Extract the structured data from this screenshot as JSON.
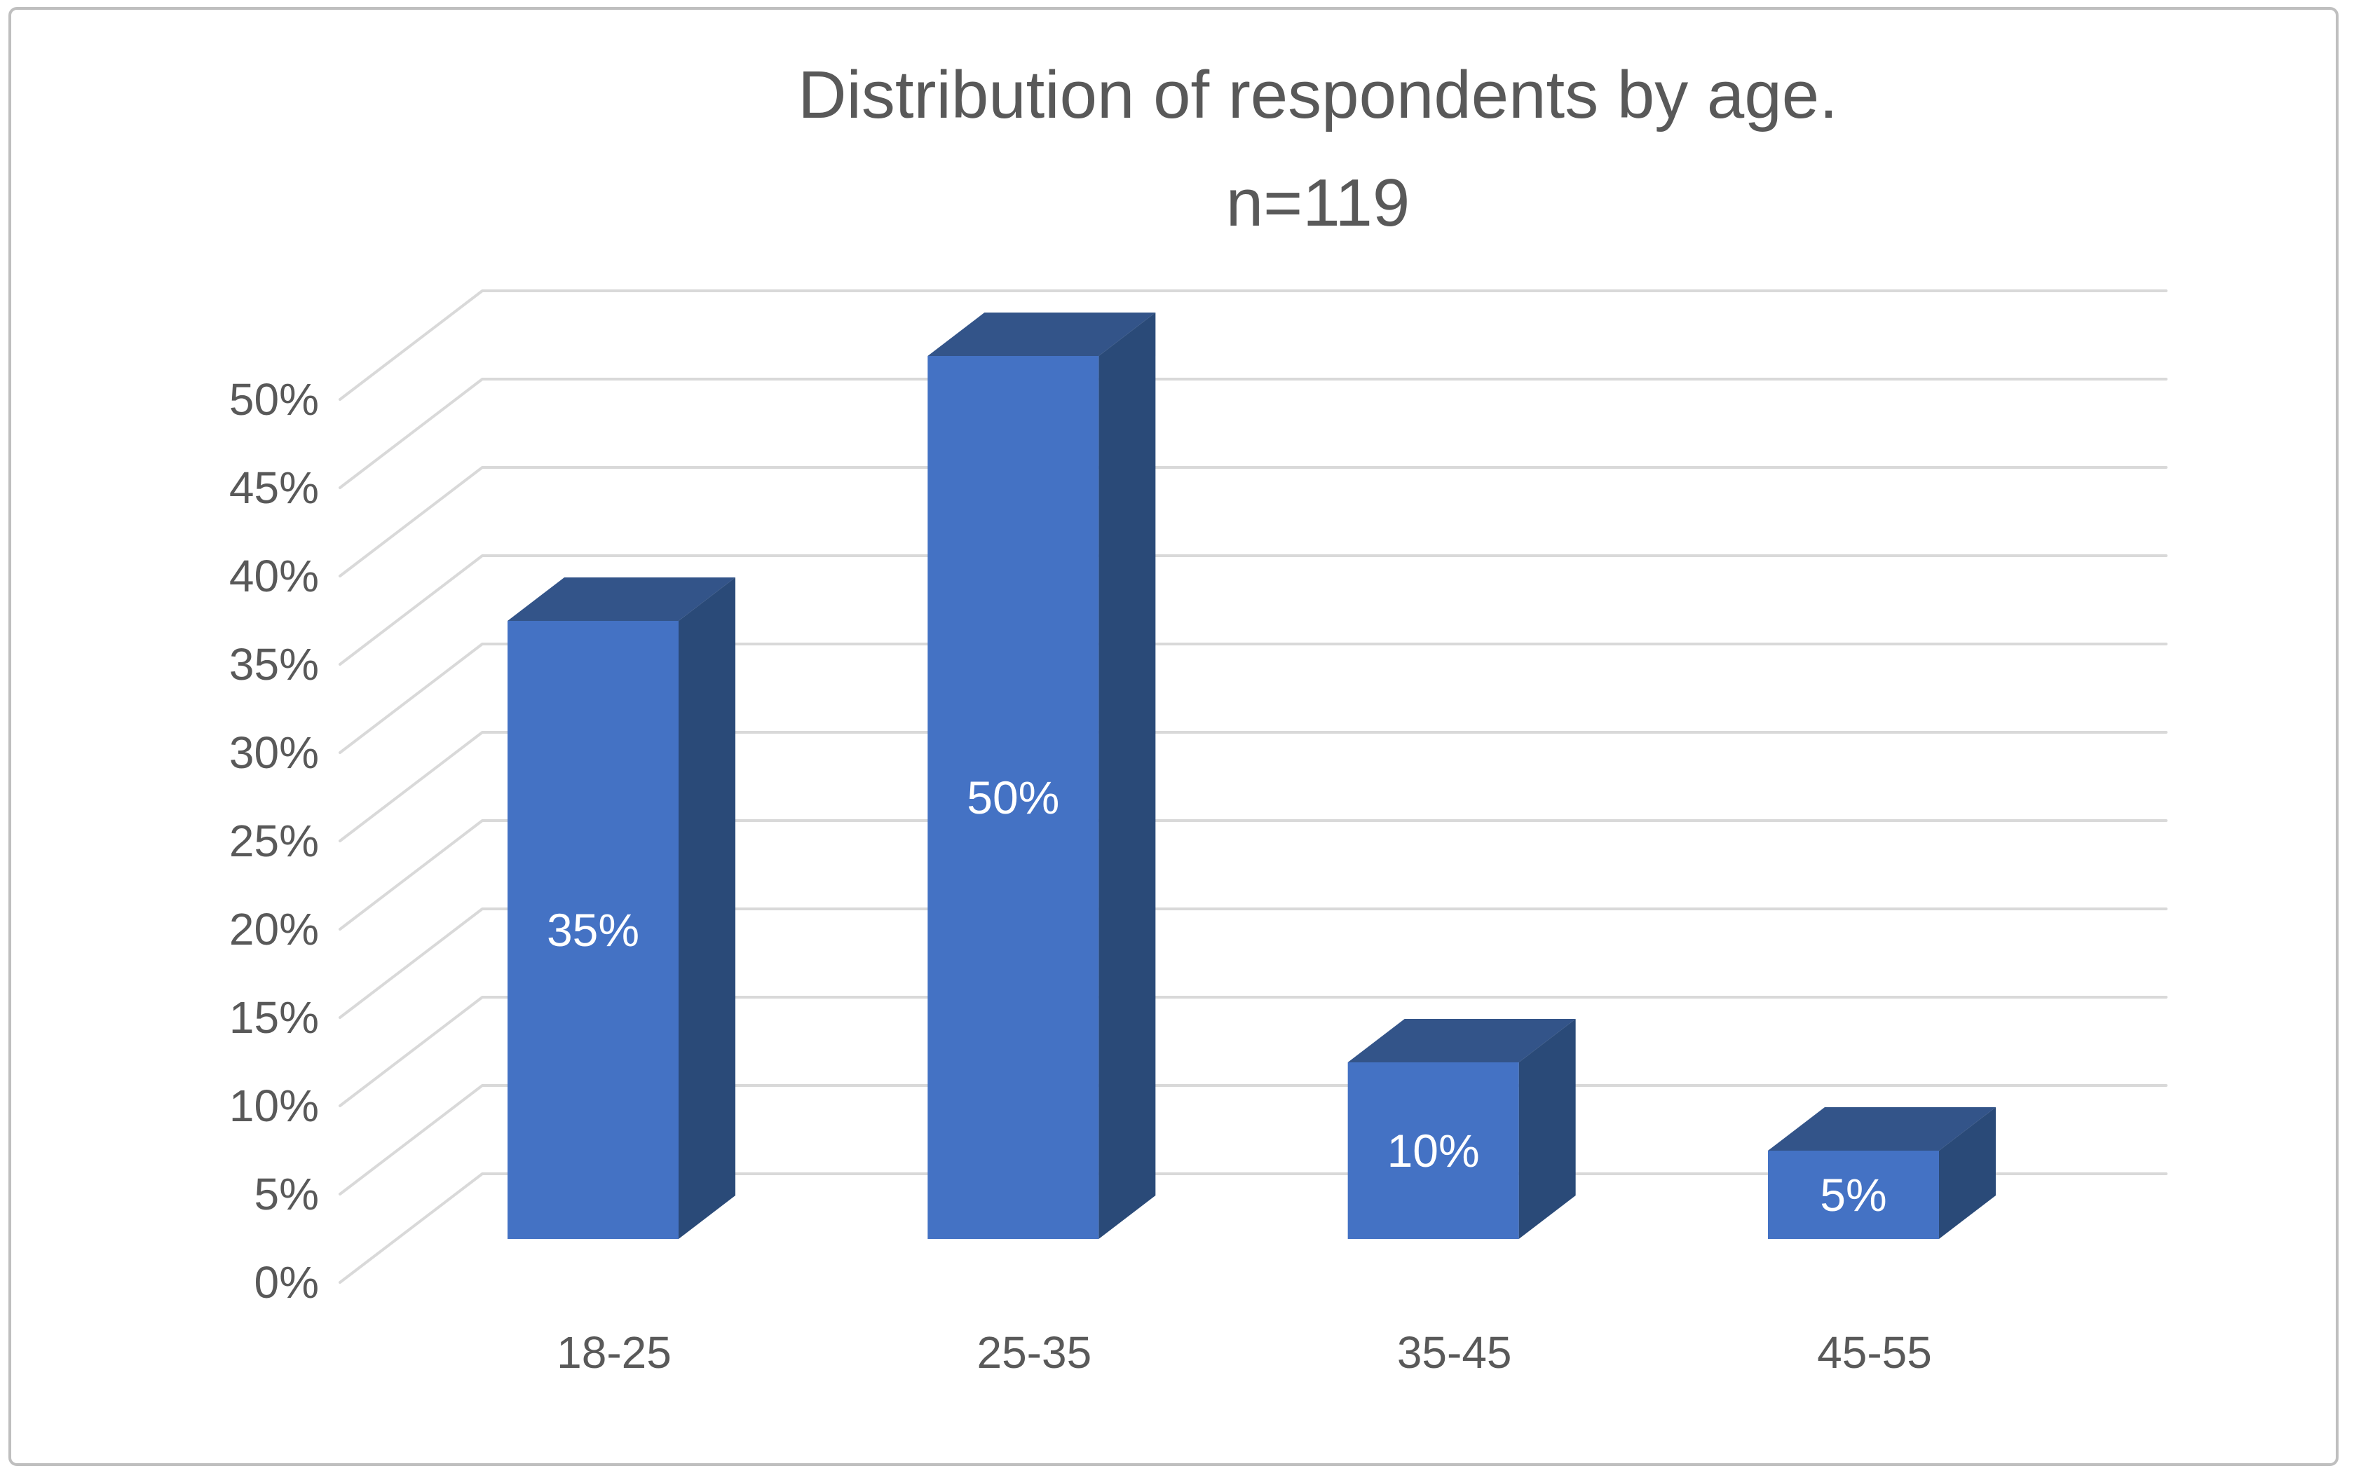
{
  "frame": {
    "border_color": "#BFBFBF",
    "background_color": "#FFFFFF"
  },
  "chart_data": {
    "type": "bar",
    "projection": "3d-column",
    "title": "Distribution of respondents by age.",
    "subtitle": "n=119",
    "categories": [
      "18-25",
      "25-35",
      "35-45",
      "45-55"
    ],
    "values": [
      35,
      50,
      10,
      5
    ],
    "data_labels": [
      "35%",
      "50%",
      "10%",
      "5%"
    ],
    "xlabel": "",
    "ylabel": "",
    "ylim": [
      0,
      50
    ],
    "ytick_step": 5,
    "ytick_labels": [
      "0%",
      "5%",
      "10%",
      "15%",
      "20%",
      "25%",
      "30%",
      "35%",
      "40%",
      "45%",
      "50%"
    ],
    "grid": true,
    "legend": false,
    "colors": {
      "bar_front": "#4472C4",
      "bar_top": "#335489",
      "bar_side": "#2A4A78",
      "data_label_text": "#FFFFFF",
      "gridline": "#D9D9D9",
      "axis_text": "#595959",
      "title_text": "#595959",
      "frame_border": "#BFBFBF"
    }
  }
}
